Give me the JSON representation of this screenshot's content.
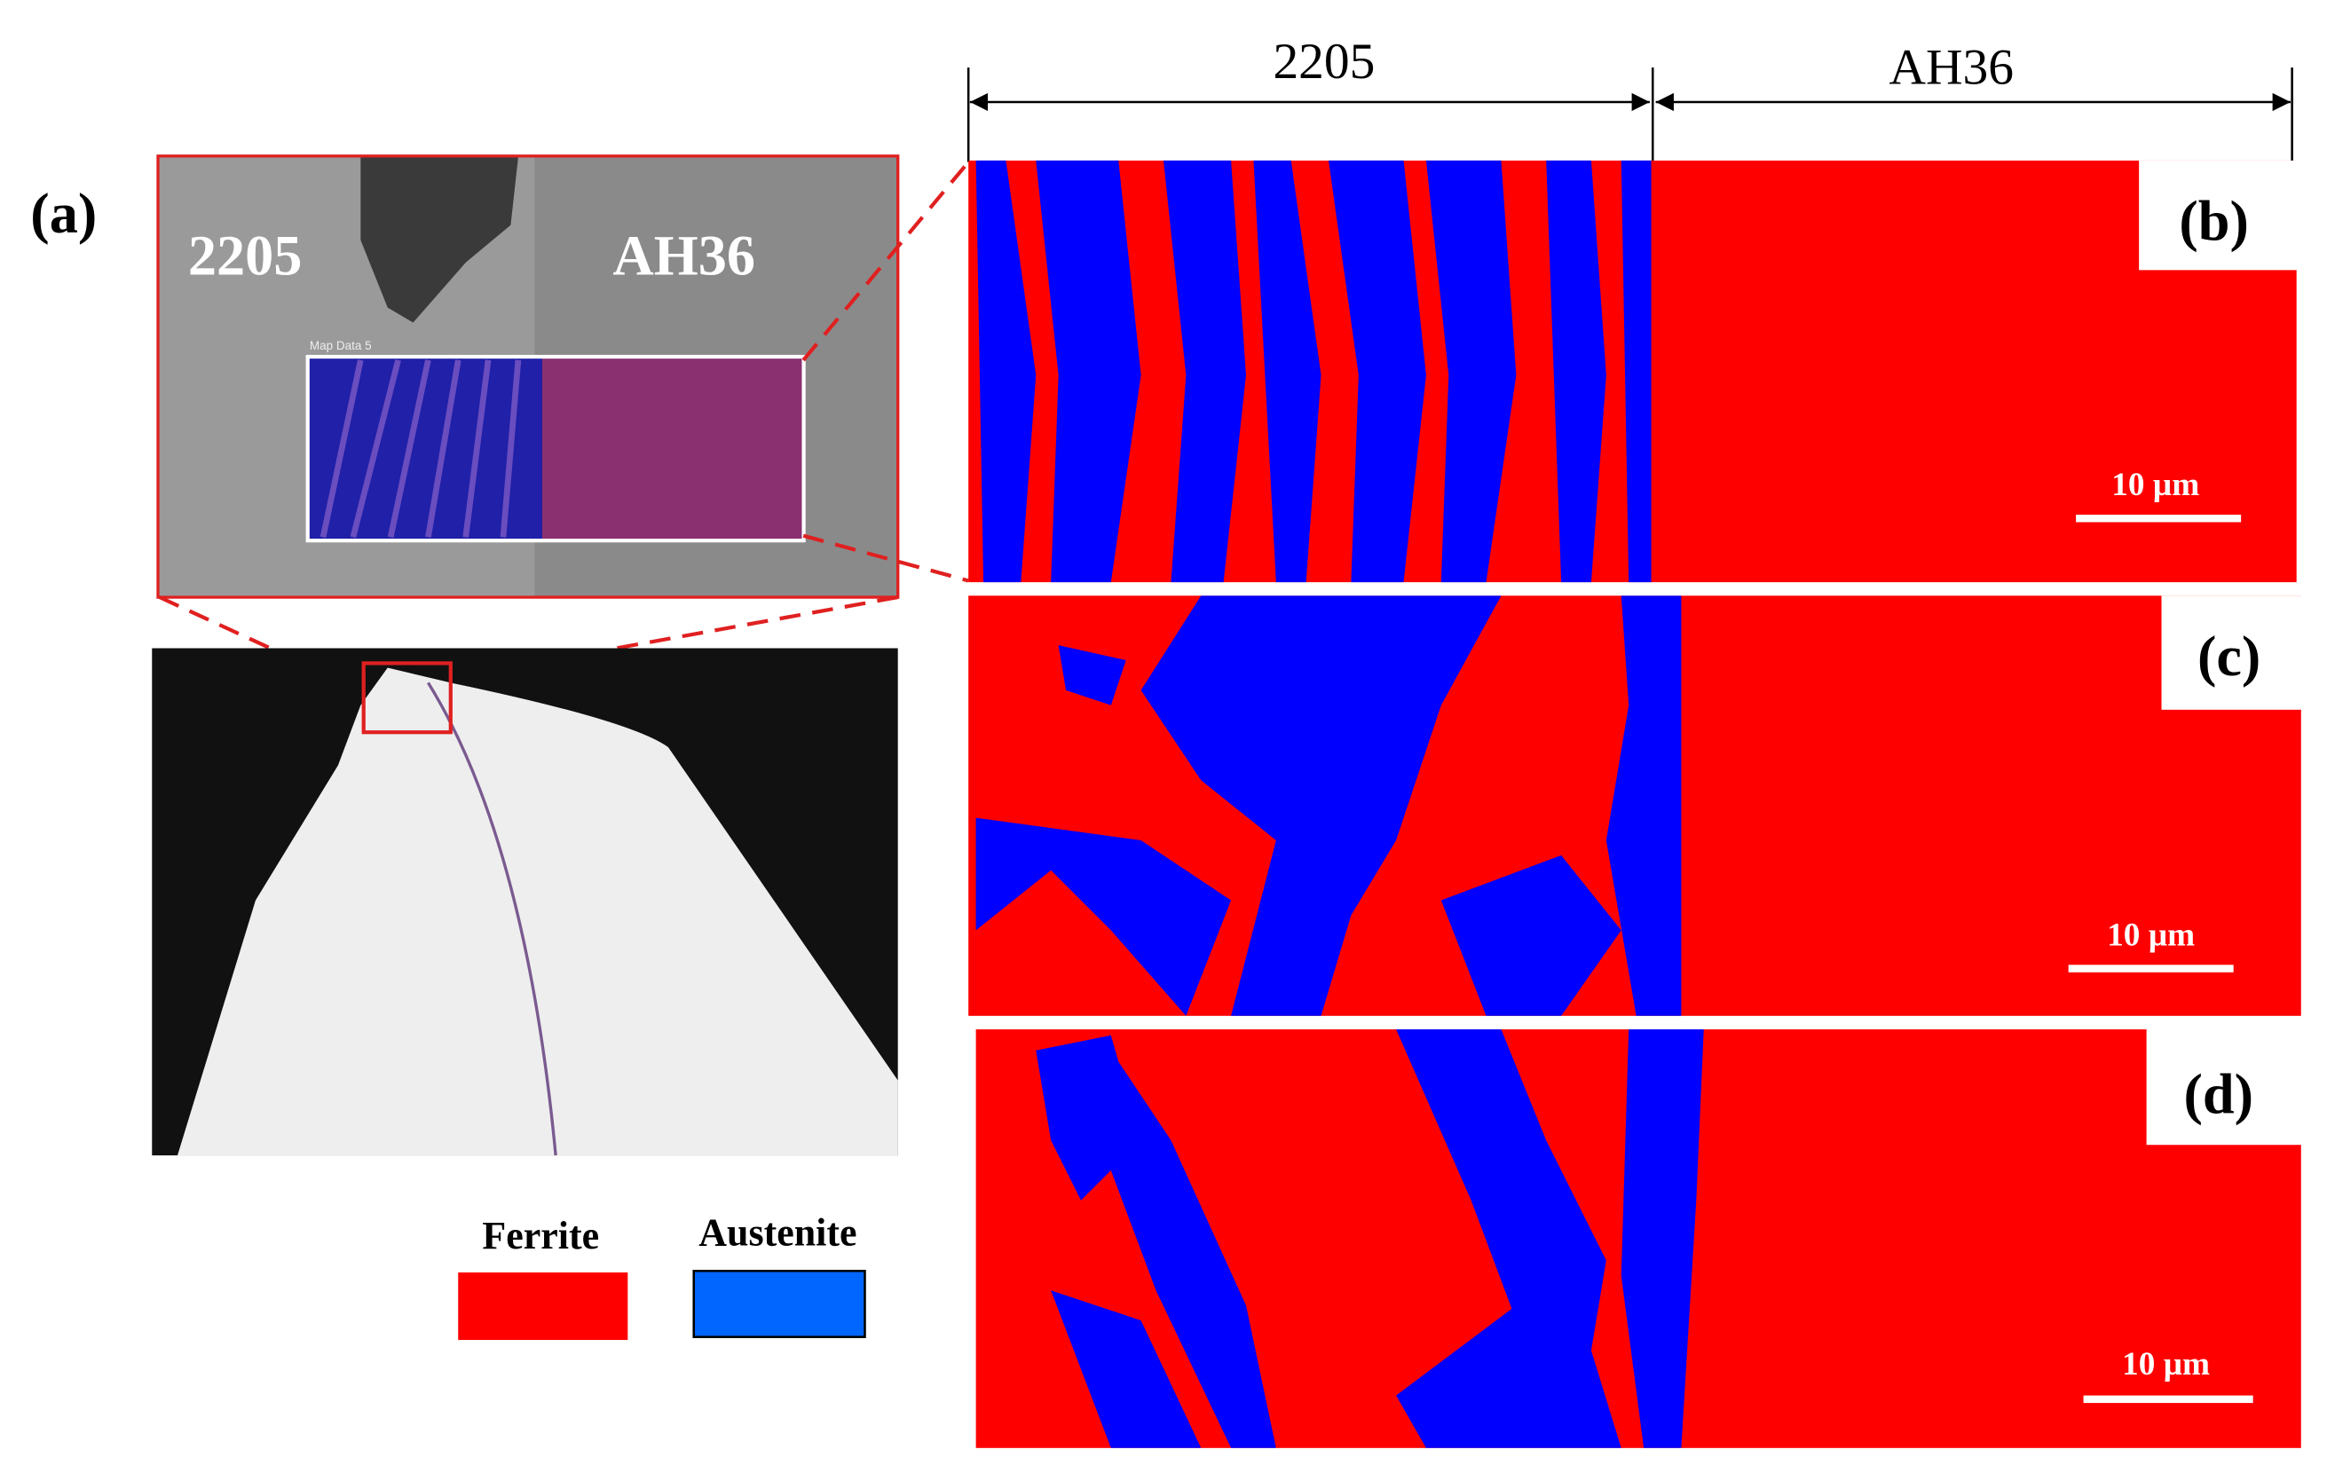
{
  "panel_a": {
    "label": "(a)",
    "left_label": "2205",
    "right_label": "AH36",
    "map_label": "Map Data 5"
  },
  "header": {
    "left": "2205",
    "right": "AH36"
  },
  "panels": [
    {
      "label": "(b)",
      "scale_bar": "10 µm"
    },
    {
      "label": "(c)",
      "scale_bar": "10 µm"
    },
    {
      "label": "(d)",
      "scale_bar": "10 µm"
    }
  ],
  "legend": {
    "items": [
      {
        "label": "Ferrite",
        "color": "#ff0000"
      },
      {
        "label": "Austenite",
        "color": "#0000ff"
      }
    ]
  }
}
